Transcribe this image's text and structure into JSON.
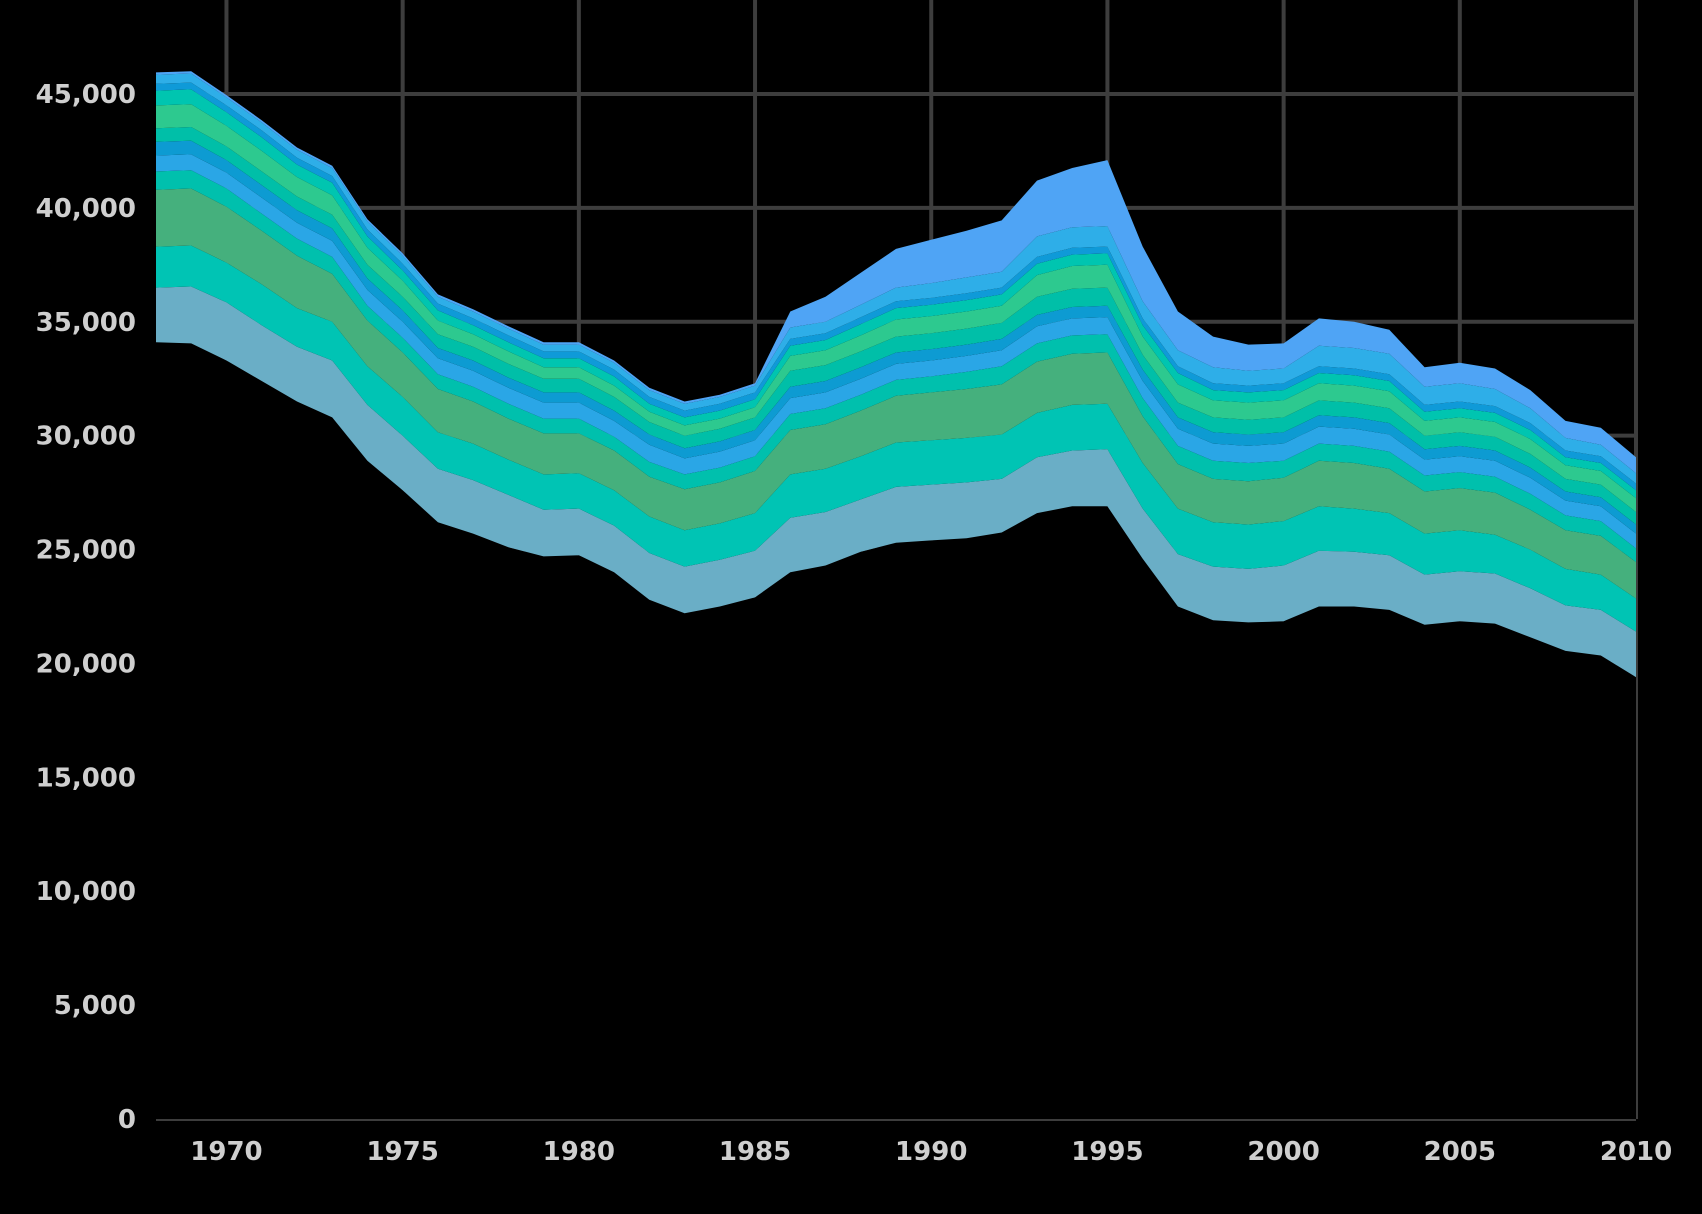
{
  "chart_data": {
    "type": "area",
    "stacked": true,
    "grid": true,
    "x": [
      1968,
      1969,
      1970,
      1971,
      1972,
      1973,
      1974,
      1975,
      1976,
      1977,
      1978,
      1979,
      1980,
      1981,
      1982,
      1983,
      1984,
      1985,
      1986,
      1987,
      1988,
      1989,
      1990,
      1991,
      1992,
      1993,
      1994,
      1995,
      1996,
      1997,
      1998,
      1999,
      2000,
      2001,
      2002,
      2003,
      2004,
      2005,
      2006,
      2007,
      2008,
      2009,
      2010
    ],
    "xlim": [
      1968,
      2010
    ],
    "ylim": [
      0,
      45000
    ],
    "x_ticks": [
      {
        "value": 1970,
        "label": "1970"
      },
      {
        "value": 1975,
        "label": "1975"
      },
      {
        "value": 1980,
        "label": "1980"
      },
      {
        "value": 1985,
        "label": "1985"
      },
      {
        "value": 1990,
        "label": "1990"
      },
      {
        "value": 1995,
        "label": "1995"
      },
      {
        "value": 2000,
        "label": "2000"
      },
      {
        "value": 2005,
        "label": "2005"
      },
      {
        "value": 2010,
        "label": "2010"
      }
    ],
    "y_ticks": [
      {
        "value": 0,
        "label": "0"
      },
      {
        "value": 5000,
        "label": "5,000"
      },
      {
        "value": 10000,
        "label": "10,000"
      },
      {
        "value": 15000,
        "label": "15,000"
      },
      {
        "value": 20000,
        "label": "20,000"
      },
      {
        "value": 25000,
        "label": "25,000"
      },
      {
        "value": 30000,
        "label": "30,000"
      },
      {
        "value": 35000,
        "label": "35,000"
      },
      {
        "value": 40000,
        "label": "40,000"
      },
      {
        "value": 45000,
        "label": "45,000"
      }
    ],
    "series": [
      {
        "color": "#000000",
        "values": [
          34100,
          34050,
          33300,
          32400,
          31500,
          30800,
          28900,
          27600,
          26200,
          25700,
          25100,
          24700,
          24750,
          24000,
          22800,
          22200,
          22500,
          22900,
          24000,
          24300,
          24900,
          25300,
          25400,
          25500,
          25750,
          26600,
          26900,
          26900,
          24600,
          22500,
          21900,
          21800,
          21850,
          22500,
          22500,
          22350,
          21700,
          21850,
          21750,
          21150,
          20550,
          20350,
          19400
        ]
      },
      {
        "color": "#6aaec6",
        "values": [
          2400,
          2500,
          2550,
          2450,
          2400,
          2500,
          2450,
          2400,
          2350,
          2350,
          2300,
          2050,
          2050,
          2050,
          2050,
          2050,
          2050,
          2050,
          2400,
          2350,
          2300,
          2450,
          2450,
          2450,
          2350,
          2450,
          2450,
          2500,
          2200,
          2300,
          2350,
          2350,
          2450,
          2450,
          2400,
          2400,
          2200,
          2200,
          2200,
          2150,
          2000,
          2000,
          2000
        ]
      },
      {
        "color": "#00c4b4",
        "values": [
          1800,
          1800,
          1750,
          1800,
          1700,
          1700,
          1700,
          1700,
          1600,
          1600,
          1550,
          1550,
          1550,
          1550,
          1600,
          1600,
          1600,
          1650,
          1900,
          1900,
          1900,
          1950,
          1950,
          1950,
          1950,
          1950,
          2000,
          2000,
          2000,
          2000,
          1950,
          1950,
          1950,
          1950,
          1900,
          1850,
          1800,
          1800,
          1700,
          1700,
          1600,
          1550,
          1450
        ]
      },
      {
        "color": "#45b07d",
        "values": [
          2500,
          2500,
          2450,
          2350,
          2300,
          2100,
          2000,
          1950,
          1900,
          1850,
          1800,
          1800,
          1750,
          1750,
          1750,
          1800,
          1800,
          1850,
          1950,
          1950,
          2000,
          2050,
          2100,
          2150,
          2200,
          2250,
          2250,
          2250,
          2050,
          1950,
          1900,
          1900,
          1900,
          2000,
          2000,
          1950,
          1850,
          1850,
          1850,
          1750,
          1700,
          1700,
          1600
        ]
      },
      {
        "color": "#00c0ad",
        "values": [
          800,
          800,
          800,
          750,
          750,
          750,
          650,
          650,
          650,
          650,
          650,
          650,
          650,
          600,
          650,
          650,
          650,
          650,
          700,
          700,
          700,
          700,
          700,
          750,
          800,
          800,
          800,
          800,
          800,
          800,
          800,
          800,
          750,
          750,
          750,
          750,
          700,
          700,
          700,
          700,
          650,
          650,
          600
        ]
      },
      {
        "color": "#2aa6e6",
        "values": [
          700,
          700,
          700,
          700,
          700,
          700,
          700,
          700,
          700,
          700,
          700,
          700,
          700,
          700,
          750,
          700,
          700,
          700,
          700,
          700,
          700,
          700,
          700,
          700,
          700,
          750,
          750,
          750,
          750,
          750,
          750,
          750,
          750,
          750,
          750,
          750,
          700,
          700,
          700,
          700,
          650,
          650,
          650
        ]
      },
      {
        "color": "#0d9bd2",
        "values": [
          600,
          600,
          550,
          550,
          550,
          550,
          500,
          500,
          450,
          450,
          450,
          450,
          450,
          450,
          450,
          450,
          450,
          450,
          500,
          500,
          500,
          500,
          500,
          500,
          500,
          500,
          500,
          500,
          500,
          500,
          500,
          500,
          500,
          500,
          500,
          500,
          450,
          450,
          450,
          450,
          400,
          400,
          400
        ]
      },
      {
        "color": "#00bfa8",
        "values": [
          600,
          600,
          600,
          600,
          600,
          600,
          600,
          600,
          600,
          600,
          600,
          600,
          600,
          600,
          550,
          550,
          550,
          550,
          700,
          700,
          700,
          700,
          700,
          700,
          700,
          800,
          800,
          800,
          650,
          650,
          650,
          650,
          650,
          650,
          650,
          650,
          600,
          600,
          600,
          600,
          550,
          550,
          550
        ]
      },
      {
        "color": "#2dc98f",
        "values": [
          1000,
          1000,
          900,
          900,
          850,
          850,
          750,
          700,
          600,
          550,
          550,
          500,
          500,
          500,
          450,
          450,
          450,
          450,
          650,
          650,
          700,
          750,
          750,
          750,
          750,
          950,
          1000,
          1000,
          800,
          800,
          750,
          750,
          750,
          750,
          750,
          750,
          650,
          650,
          650,
          650,
          600,
          600,
          600
        ]
      },
      {
        "color": "#00c5b0",
        "values": [
          650,
          650,
          600,
          600,
          550,
          550,
          500,
          450,
          450,
          400,
          400,
          400,
          400,
          400,
          350,
          350,
          350,
          350,
          450,
          450,
          500,
          500,
          500,
          500,
          500,
          500,
          500,
          500,
          500,
          500,
          450,
          450,
          450,
          450,
          450,
          450,
          400,
          400,
          400,
          400,
          350,
          350,
          350
        ]
      },
      {
        "color": "#0f9ad8",
        "values": [
          300,
          300,
          300,
          300,
          300,
          300,
          300,
          300,
          300,
          300,
          300,
          300,
          300,
          300,
          300,
          300,
          300,
          300,
          300,
          300,
          300,
          300,
          300,
          300,
          300,
          300,
          300,
          300,
          300,
          300,
          300,
          300,
          300,
          300,
          300,
          300,
          300,
          300,
          300,
          300,
          300,
          300,
          300
        ]
      },
      {
        "color": "#2eaee8",
        "values": [
          400,
          400,
          350,
          350,
          350,
          350,
          350,
          350,
          300,
          300,
          300,
          300,
          300,
          300,
          300,
          300,
          300,
          300,
          500,
          500,
          550,
          600,
          650,
          700,
          700,
          900,
          900,
          900,
          750,
          700,
          700,
          650,
          650,
          900,
          900,
          900,
          800,
          800,
          750,
          650,
          550,
          500,
          450
        ]
      },
      {
        "color": "#4fa4f5",
        "values": [
          100,
          100,
          100,
          100,
          100,
          100,
          100,
          100,
          100,
          100,
          100,
          100,
          100,
          100,
          100,
          100,
          100,
          100,
          700,
          1100,
          1400,
          1700,
          1900,
          2050,
          2250,
          2450,
          2600,
          2900,
          2400,
          1700,
          1350,
          1150,
          1100,
          1200,
          1150,
          1050,
          850,
          900,
          900,
          800,
          750,
          750,
          700
        ]
      }
    ]
  }
}
